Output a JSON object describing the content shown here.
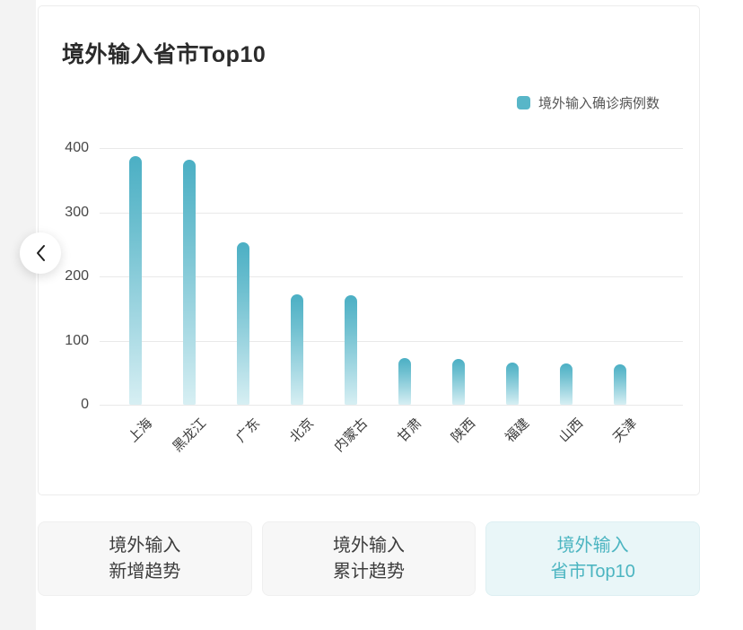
{
  "chart_data": {
    "type": "bar",
    "title": "境外输入省市Top10",
    "legend": [
      {
        "name": "境外输入确诊病例数",
        "color": "#58b6c8"
      }
    ],
    "legend_position": "top-right",
    "categories": [
      "上海",
      "黑龙江",
      "广东",
      "北京",
      "内蒙古",
      "甘肃",
      "陕西",
      "福建",
      "山西",
      "天津"
    ],
    "series": [
      {
        "name": "境外输入确诊病例数",
        "values": [
          387,
          382,
          253,
          172,
          170,
          73,
          72,
          66,
          65,
          63
        ]
      }
    ],
    "xlabel": "",
    "ylabel": "",
    "ylim": [
      0,
      400
    ],
    "yticks": [
      0,
      100,
      200,
      300,
      400
    ],
    "grid": true,
    "x_label_rotation": 45,
    "bar_color_top": "#4bafc4",
    "bar_color_bottom": "#d7eff3"
  },
  "carousel": {
    "prev_icon": "chevron-left"
  },
  "tabs": [
    {
      "id": "imported-new-trend",
      "lines": [
        "境外输入",
        "新增趋势"
      ],
      "active": false
    },
    {
      "id": "imported-cumulative-trend",
      "lines": [
        "境外输入",
        "累计趋势"
      ],
      "active": false
    },
    {
      "id": "imported-province-top10",
      "lines": [
        "境外输入",
        "省市Top10"
      ],
      "active": true
    }
  ],
  "colors": {
    "accent_teal": "#4cb5c1",
    "active_tab_bg": "#e9f6f8",
    "inactive_tab_bg": "#f7f7f7",
    "gridline": "#e9e9e9",
    "axis_text": "#474747",
    "title_text": "#2b2b2b",
    "left_strip_bg": "#f3f3f3"
  }
}
